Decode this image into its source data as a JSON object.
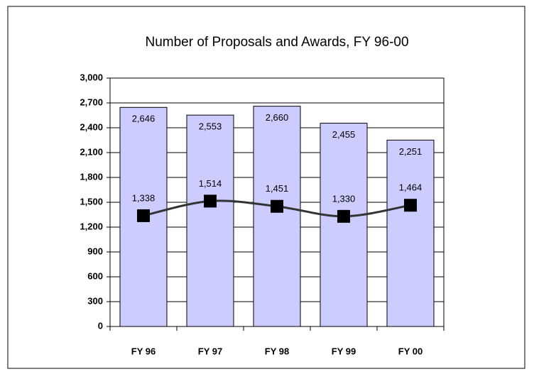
{
  "chart_data": {
    "type": "bar-line",
    "title": "Number of Proposals and Awards, FY 96-00",
    "categories": [
      "FY 96",
      "FY 97",
      "FY 98",
      "FY 99",
      "FY 00"
    ],
    "series": [
      {
        "type": "bar",
        "color": "#ccccff",
        "values": [
          2646,
          2553,
          2660,
          2455,
          2251
        ],
        "value_labels": [
          "2,646",
          "2,553",
          "2,660",
          "2,455",
          "2,251"
        ]
      },
      {
        "type": "line",
        "color": "#333333",
        "marker_color": "#000000",
        "values": [
          1338,
          1514,
          1451,
          1330,
          1464
        ],
        "value_labels": [
          "1,338",
          "1,514",
          "1,451",
          "1,330",
          "1,464"
        ]
      }
    ],
    "ylim": [
      0,
      3000
    ],
    "yticks": [
      0,
      300,
      600,
      900,
      {
        "value": 1200,
        "label": "1,200"
      },
      {
        "value": 1500,
        "label": "1,500"
      },
      {
        "value": 1800,
        "label": "1,800"
      },
      {
        "value": 2100,
        "label": "2,100"
      },
      {
        "value": 2400,
        "label": "2,400"
      },
      {
        "value": 2700,
        "label": "2,700"
      },
      {
        "value": 3000,
        "label": "3,000"
      }
    ],
    "grid": true
  }
}
